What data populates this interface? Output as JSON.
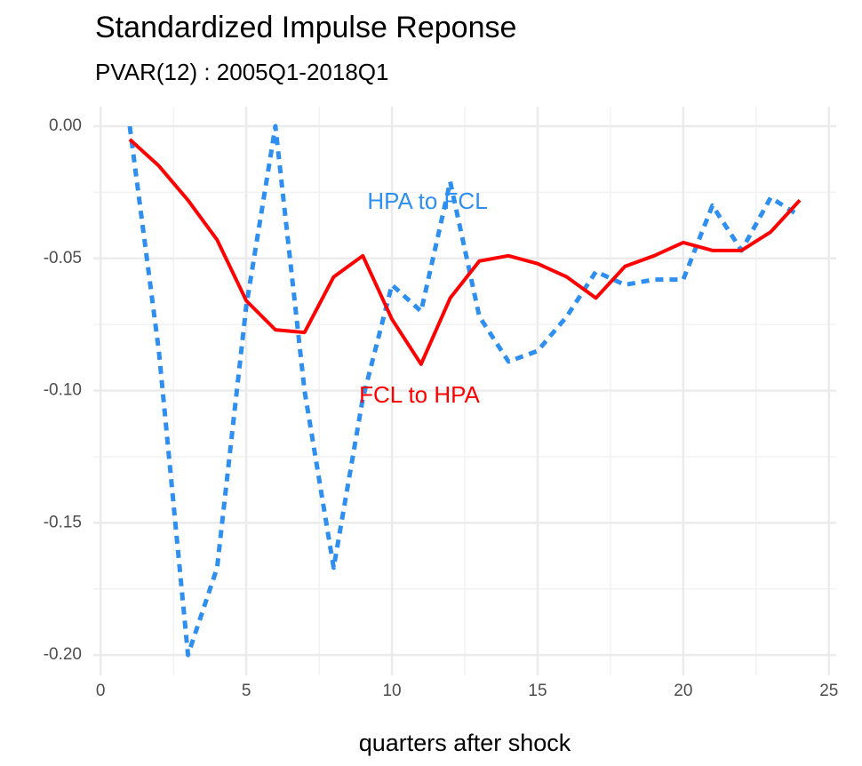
{
  "chart_data": {
    "type": "line",
    "title": "Standardized Impulse Reponse",
    "subtitle": "PVAR(12) : 2005Q1-2018Q1",
    "x_label": "quarters after shock",
    "x": [
      1,
      2,
      3,
      4,
      5,
      6,
      7,
      8,
      9,
      10,
      11,
      12,
      13,
      14,
      15,
      16,
      17,
      18,
      19,
      20,
      21,
      22,
      23,
      24
    ],
    "series": [
      {
        "name": "HPA to FCL",
        "color": "#2e8ff0",
        "dash": true,
        "values": [
          0.0,
          -0.085,
          -0.2,
          -0.167,
          -0.068,
          0.0,
          -0.1,
          -0.167,
          -0.103,
          -0.06,
          -0.07,
          -0.021,
          -0.072,
          -0.089,
          -0.085,
          -0.072,
          -0.055,
          -0.06,
          -0.058,
          -0.058,
          -0.03,
          -0.047,
          -0.027,
          -0.034
        ]
      },
      {
        "name": "FCL to HPA",
        "color": "#ff0000",
        "dash": false,
        "values": [
          -0.005,
          -0.015,
          -0.028,
          -0.043,
          -0.066,
          -0.077,
          -0.078,
          -0.057,
          -0.049,
          -0.073,
          -0.09,
          -0.065,
          -0.051,
          -0.049,
          -0.052,
          -0.057,
          -0.065,
          -0.053,
          -0.049,
          -0.044,
          -0.047,
          -0.047,
          -0.04,
          -0.028
        ]
      }
    ],
    "xlim": [
      -0.25,
      25.25
    ],
    "xticks": [
      0,
      5,
      10,
      15,
      20,
      25
    ],
    "ylim": [
      -0.2077,
      0.0074
    ],
    "yticks": [
      {
        "value": -0.2,
        "label": "-0.20"
      },
      {
        "value": -0.15,
        "label": "-0.15"
      },
      {
        "value": -0.1,
        "label": "-0.10"
      },
      {
        "value": -0.05,
        "label": "-0.05"
      },
      {
        "value": 0,
        "label": "0.00"
      }
    ],
    "grid": true
  }
}
